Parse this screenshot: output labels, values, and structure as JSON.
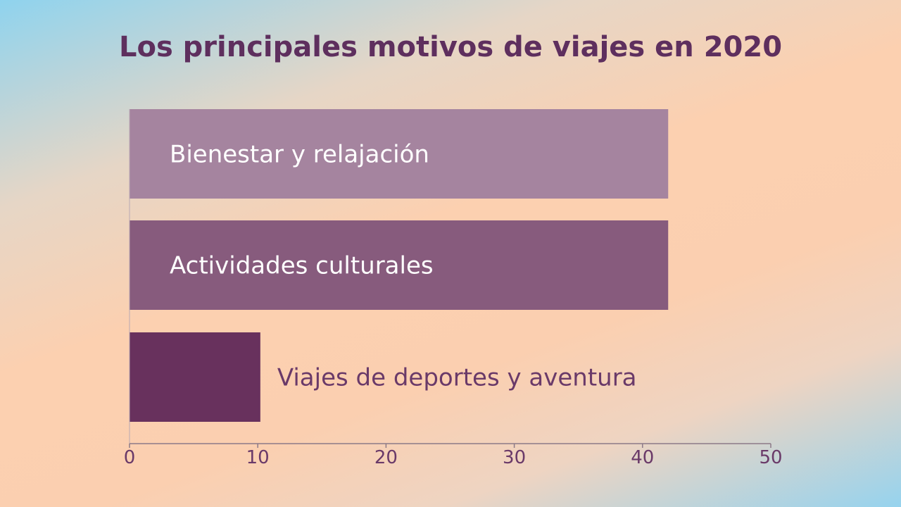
{
  "chart_data": {
    "type": "bar",
    "orientation": "horizontal",
    "title": "Los principales motivos de viajes en 2020",
    "categories": [
      "Bienestar y relajación",
      "Actividades culturales",
      "Viajes de deportes y aventura"
    ],
    "values": [
      42,
      42,
      10.2
    ],
    "bar_colors": [
      "#a5849f",
      "#875b7d",
      "#68315d"
    ],
    "label_colors": [
      "#ffffff",
      "#ffffff",
      "#6a3a69"
    ],
    "xlim": [
      0,
      50
    ],
    "xticks": [
      0,
      10,
      20,
      30,
      40,
      50
    ],
    "xlabel": "",
    "ylabel": "",
    "grid": false,
    "legend": "none"
  }
}
